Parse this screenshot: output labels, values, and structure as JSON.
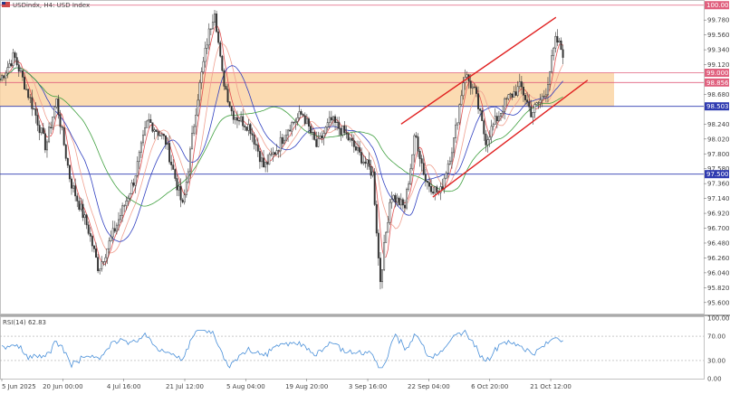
{
  "header": {
    "symbol_label": "USDindx, H4:  USD Index"
  },
  "rsi_panel": {
    "label": "RSI(14) 62.83"
  },
  "chart_data": [
    {
      "type": "candlestick",
      "price_axis": {
        "ticks": [
          "100.000",
          "99.780",
          "99.560",
          "99.340",
          "99.120",
          "99.000",
          "98.856",
          "98.680",
          "98.503",
          "98.240",
          "98.020",
          "97.800",
          "97.580",
          "97.500",
          "97.360",
          "97.140",
          "96.920",
          "96.700",
          "96.480",
          "96.260",
          "96.040",
          "95.820",
          "95.600"
        ],
        "ylim": [
          95.45,
          100.05
        ]
      },
      "time_axis": {
        "labels": [
          "5 Jun 2025",
          "20 Jun 00:00",
          "4 Jul 16:00",
          "21 Jul 12:00",
          "5 Aug 04:00",
          "19 Aug 20:00",
          "3 Sep 16:00",
          "22 Sep 04:00",
          "6 Oct 20:00",
          "21 Oct 12:00"
        ]
      },
      "horizontal_levels": [
        {
          "value": 100.0,
          "label": "100.000",
          "color": "#e0607e"
        },
        {
          "value": 99.0,
          "label": "99.000",
          "color": "#e0607e"
        },
        {
          "value": 98.856,
          "label": "98.856",
          "color": "#e0607e"
        },
        {
          "value": 98.503,
          "label": "98.503",
          "color": "#2e3ab0"
        },
        {
          "value": 97.5,
          "label": "97.500",
          "color": "#2e3ab0"
        }
      ],
      "zone": {
        "from": 98.503,
        "to": 99.0,
        "color": "#fad5a5"
      },
      "channel": {
        "color": "#e02020",
        "upper": [
          [
            0.57,
            98.24
          ],
          [
            0.79,
            99.82
          ]
        ],
        "lower": [
          [
            0.615,
            97.16
          ],
          [
            0.835,
            98.89
          ]
        ]
      },
      "price_anchors": [
        [
          0.0,
          98.9
        ],
        [
          0.02,
          99.25
        ],
        [
          0.05,
          98.4
        ],
        [
          0.065,
          97.9
        ],
        [
          0.08,
          98.6
        ],
        [
          0.1,
          97.4
        ],
        [
          0.125,
          96.7
        ],
        [
          0.14,
          96.1
        ],
        [
          0.16,
          96.6
        ],
        [
          0.19,
          97.4
        ],
        [
          0.21,
          98.3
        ],
        [
          0.235,
          98.0
        ],
        [
          0.26,
          97.0
        ],
        [
          0.28,
          98.6
        ],
        [
          0.295,
          99.5
        ],
        [
          0.305,
          99.95
        ],
        [
          0.315,
          99.0
        ],
        [
          0.33,
          98.4
        ],
        [
          0.355,
          98.2
        ],
        [
          0.375,
          97.6
        ],
        [
          0.395,
          97.9
        ],
        [
          0.41,
          98.2
        ],
        [
          0.43,
          98.4
        ],
        [
          0.45,
          97.9
        ],
        [
          0.47,
          98.3
        ],
        [
          0.49,
          98.1
        ],
        [
          0.51,
          97.8
        ],
        [
          0.53,
          97.5
        ],
        [
          0.54,
          95.9
        ],
        [
          0.555,
          97.2
        ],
        [
          0.575,
          97.0
        ],
        [
          0.59,
          98.1
        ],
        [
          0.605,
          97.4
        ],
        [
          0.625,
          97.2
        ],
        [
          0.645,
          98.0
        ],
        [
          0.66,
          99.0
        ],
        [
          0.675,
          98.7
        ],
        [
          0.69,
          98.0
        ],
        [
          0.705,
          98.3
        ],
        [
          0.72,
          98.6
        ],
        [
          0.74,
          98.8
        ],
        [
          0.755,
          98.4
        ],
        [
          0.775,
          98.7
        ],
        [
          0.79,
          99.5
        ],
        [
          0.8,
          99.3
        ]
      ],
      "moving_averages": [
        {
          "name": "",
          "color": "#e05050",
          "period": 5
        },
        {
          "name": "",
          "color": "#f0a090",
          "period": 12
        },
        {
          "name": "",
          "color": "#3040c0",
          "period": 20
        },
        {
          "name": "",
          "color": "#40a040",
          "period": 45
        }
      ]
    },
    {
      "type": "line",
      "indicator": "RSI(14)",
      "current_value": 62.83,
      "y_ticks": [
        "100.00",
        "70.00",
        "30.00",
        "0.00"
      ],
      "levels": [
        70,
        30
      ],
      "ylim": [
        0,
        100
      ],
      "line_color": "#4a90d9"
    }
  ]
}
